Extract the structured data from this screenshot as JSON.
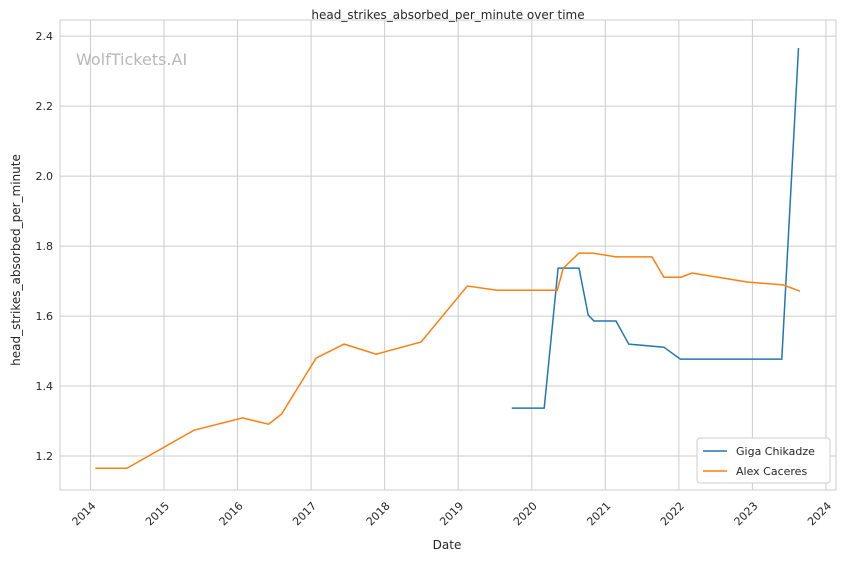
{
  "chart_data": {
    "type": "line",
    "title": "head_strikes_absorbed_per_minute over time",
    "xlabel": "Date",
    "ylabel": "head_strikes_absorbed_per_minute",
    "watermark": "WolfTickets.AI",
    "xlim": [
      "2013-08-03",
      "2024-02-20"
    ],
    "ylim": [
      1.103,
      2.446
    ],
    "x_ticks": [
      "2014",
      "2015",
      "2016",
      "2017",
      "2018",
      "2019",
      "2020",
      "2021",
      "2022",
      "2023",
      "2024"
    ],
    "y_ticks": [
      "1.2",
      "1.4",
      "1.6",
      "1.8",
      "2.0",
      "2.2",
      "2.4"
    ],
    "grid": true,
    "legend": "bottom-right",
    "series": [
      {
        "name": "Giga Chikadze",
        "color": "#1f77b4",
        "points": [
          [
            "2019-09-24",
            1.337
          ],
          [
            "2020-03-03",
            1.337
          ],
          [
            "2020-05-11",
            1.737
          ],
          [
            "2020-08-23",
            1.737
          ],
          [
            "2020-10-08",
            1.603
          ],
          [
            "2020-11-06",
            1.586
          ],
          [
            "2021-02-23",
            1.586
          ],
          [
            "2021-04-27",
            1.52
          ],
          [
            "2021-10-19",
            1.511
          ],
          [
            "2022-01-08",
            1.477
          ],
          [
            "2023-05-27",
            1.477
          ],
          [
            "2023-08-18",
            2.366
          ]
        ]
      },
      {
        "name": "Alex Caceres",
        "color": "#ff7f0e",
        "points": [
          [
            "2014-01-25",
            1.165
          ],
          [
            "2014-07-01",
            1.165
          ],
          [
            "2015-05-30",
            1.274
          ],
          [
            "2016-01-26",
            1.309
          ],
          [
            "2016-06-03",
            1.291
          ],
          [
            "2016-08-07",
            1.32
          ],
          [
            "2017-01-26",
            1.48
          ],
          [
            "2017-06-14",
            1.52
          ],
          [
            "2017-11-20",
            1.491
          ],
          [
            "2018-07-01",
            1.526
          ],
          [
            "2019-02-15",
            1.686
          ],
          [
            "2019-07-13",
            1.674
          ],
          [
            "2020-05-07",
            1.674
          ],
          [
            "2020-06-06",
            1.737
          ],
          [
            "2020-08-23",
            1.78
          ],
          [
            "2020-10-31",
            1.78
          ],
          [
            "2021-02-23",
            1.769
          ],
          [
            "2021-08-21",
            1.769
          ],
          [
            "2021-10-19",
            1.711
          ],
          [
            "2022-01-12",
            1.711
          ],
          [
            "2022-03-07",
            1.723
          ],
          [
            "2022-12-10",
            1.697
          ],
          [
            "2023-06-02",
            1.689
          ],
          [
            "2023-08-25",
            1.671
          ]
        ]
      }
    ]
  }
}
